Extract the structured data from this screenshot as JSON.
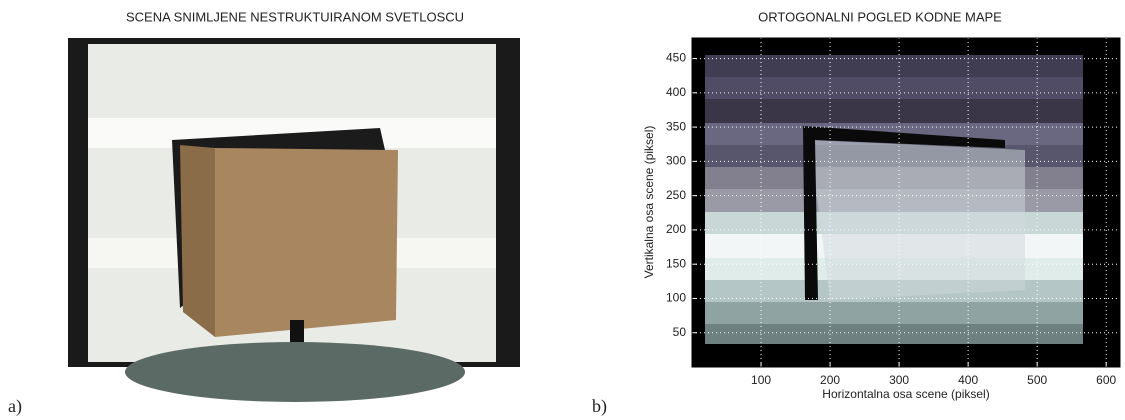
{
  "chart_data": [
    {
      "type": "image",
      "title": "SCENA SNIMLJENE NESTRUKTUIRANOM SVETLOSCU",
      "label": "a)"
    },
    {
      "type": "image",
      "title": "ORTOGONALNI POGLED KODNE MAPE",
      "label": "b)",
      "xlabel": "Horizontalna osa scene (piksel)",
      "ylabel": "Vertikalna osa scene (piksel)",
      "xlim": [
        0,
        620
      ],
      "ylim": [
        0,
        480
      ],
      "xticks": [
        100,
        200,
        300,
        400,
        500,
        600
      ],
      "yticks": [
        50,
        100,
        150,
        200,
        250,
        300,
        350,
        400,
        450
      ],
      "grid": true
    }
  ]
}
